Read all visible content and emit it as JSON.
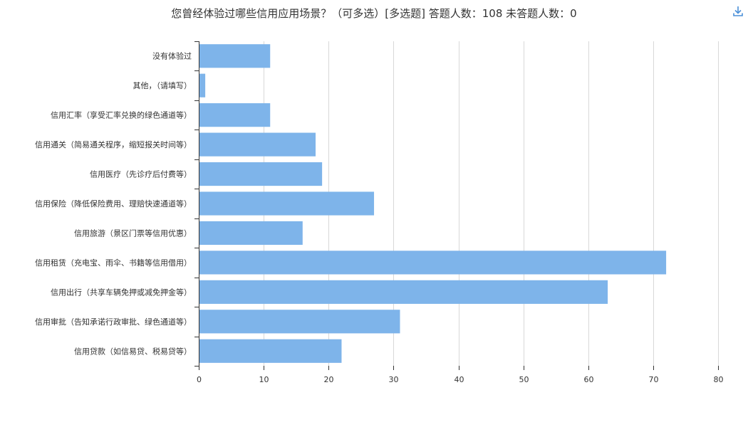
{
  "title": "您曾经体验过哪些信用应用场景？（可多选）[多选题]  答题人数：108  未答题人数：0",
  "download_icon": "download-icon",
  "colors": {
    "bar": "#7eb4ea",
    "grid": "#d8d8d8",
    "axis": "#333333",
    "text": "#333333",
    "icon": "#4a8fd8"
  },
  "chart_data": {
    "type": "bar",
    "orientation": "horizontal",
    "categories": [
      "没有体验过",
      "其他，（请填写）",
      "信用汇率（享受汇率兑换的绿色通道等）",
      "信用通关（简易通关程序，缩短报关时间等）",
      "信用医疗（先诊疗后付费等）",
      "信用保险（降低保险费用、理赔快速通道等）",
      "信用旅游（景区门票等信用优惠）",
      "信用租赁（充电宝、雨伞、书籍等信用借用）",
      "信用出行（共享车辆免押或减免押金等）",
      "信用审批（告知承诺行政审批、绿色通道等）",
      "信用贷款（如信易贷、税易贷等）"
    ],
    "values": [
      11,
      1,
      11,
      18,
      19,
      27,
      16,
      72,
      63,
      31,
      22
    ],
    "xlim": [
      0,
      80
    ],
    "xticks": [
      "0",
      "10",
      "20",
      "30",
      "40",
      "50",
      "60",
      "70",
      "80"
    ],
    "grid": true,
    "legend": "none"
  }
}
